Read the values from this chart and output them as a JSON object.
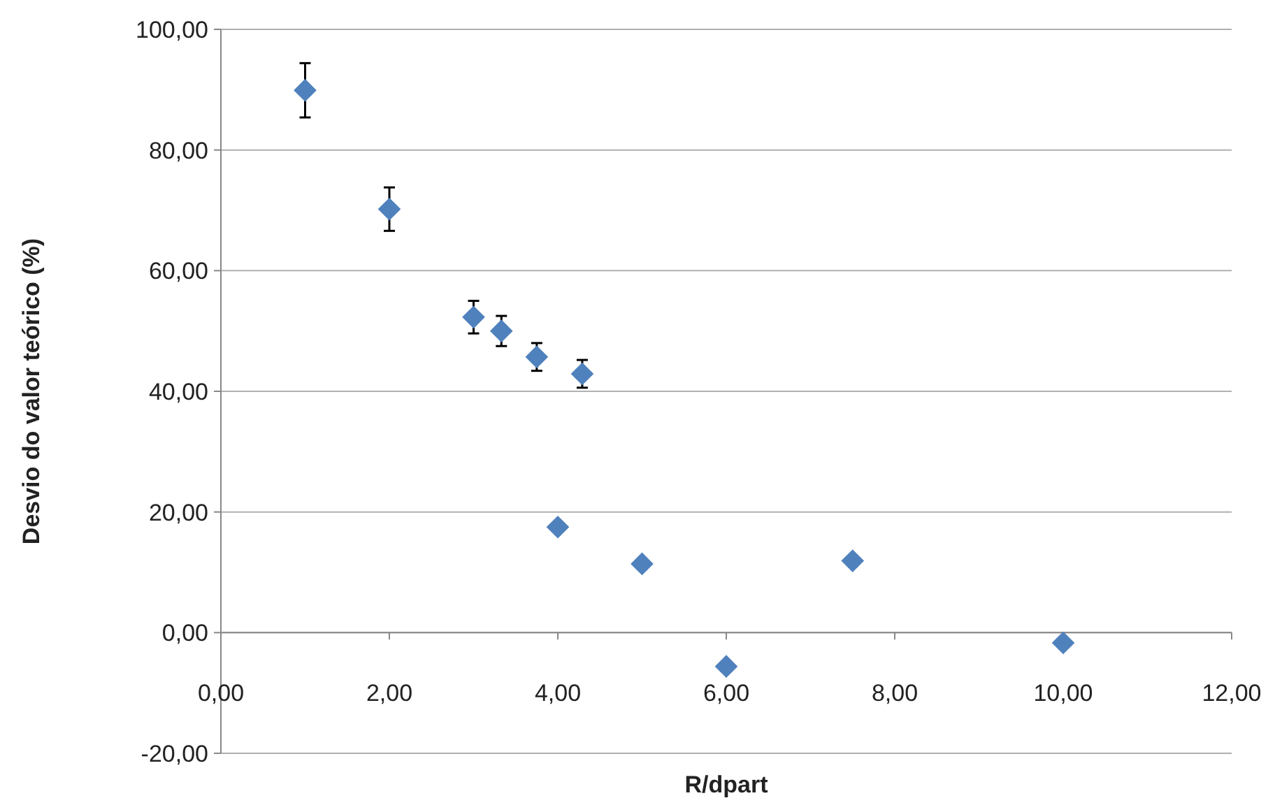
{
  "chart_data": {
    "type": "scatter",
    "xlabel": "R/dpart",
    "ylabel": "Desvio do valor teórico (%)",
    "x": [
      1,
      2,
      3,
      3.33,
      3.75,
      4.29,
      4,
      5,
      6,
      7.5,
      10
    ],
    "series": [
      {
        "color": "#4f81bd",
        "values": [
          89.9,
          70.2,
          52.3,
          50,
          45.7,
          42.9,
          17.5,
          11.4,
          -5.6,
          11.9,
          -1.7
        ],
        "errors": [
          4.5,
          3.6,
          2.7,
          2.5,
          2.3,
          2.3,
          null,
          null,
          null,
          null,
          null
        ]
      }
    ],
    "xlim": [
      0,
      12
    ],
    "ylim": [
      -20,
      100
    ],
    "xticks": [
      {
        "value": 0,
        "label": "0,00"
      },
      {
        "value": 2,
        "label": "2,00"
      },
      {
        "value": 4,
        "label": "4,00"
      },
      {
        "value": 6,
        "label": "6,00"
      },
      {
        "value": 8,
        "label": "8,00"
      },
      {
        "value": 10,
        "label": "10,00"
      },
      {
        "value": 12,
        "label": "12,00"
      }
    ],
    "yticks": [
      {
        "value": -20,
        "label": "-20,00"
      },
      {
        "value": 0,
        "label": "0,00"
      },
      {
        "value": 20,
        "label": "20,00"
      },
      {
        "value": 40,
        "label": "40,00"
      },
      {
        "value": 60,
        "label": "60,00"
      },
      {
        "value": 80,
        "label": "80,00"
      },
      {
        "value": 100,
        "label": "100,00"
      }
    ],
    "grid": "y",
    "marker": "diamond"
  }
}
